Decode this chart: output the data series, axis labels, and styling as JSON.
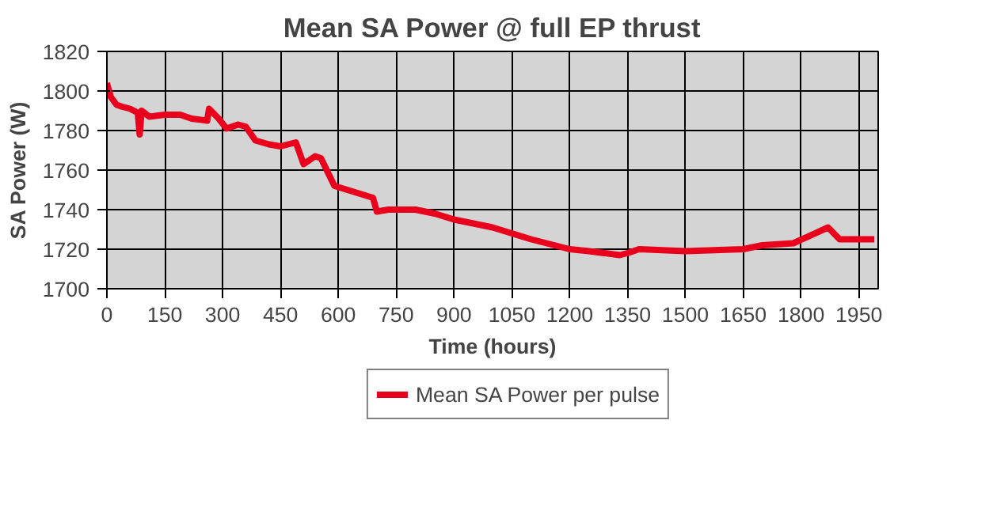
{
  "chart_data": {
    "type": "line",
    "title": "Mean SA Power @ full EP thrust",
    "xlabel": "Time (hours)",
    "ylabel": "SA Power (W)",
    "xlim": [
      0,
      2000
    ],
    "xticks": [
      0,
      150,
      300,
      450,
      600,
      750,
      900,
      1050,
      1200,
      1350,
      1500,
      1650,
      1800,
      1950
    ],
    "ylim": [
      1700,
      1820
    ],
    "yticks": [
      1700,
      1720,
      1740,
      1760,
      1780,
      1800,
      1820
    ],
    "grid": true,
    "legend": "bottom",
    "marker": "none",
    "line_style": "solid",
    "series": [
      {
        "name": "Mean SA Power per pulse",
        "color": "#e8001c",
        "x": [
          0,
          10,
          25,
          40,
          60,
          80,
          85,
          90,
          110,
          150,
          190,
          220,
          260,
          265,
          290,
          310,
          340,
          360,
          385,
          420,
          450,
          490,
          510,
          540,
          555,
          590,
          640,
          690,
          700,
          730,
          800,
          850,
          900,
          1000,
          1050,
          1100,
          1200,
          1250,
          1330,
          1350,
          1380,
          1500,
          1650,
          1700,
          1780,
          1870,
          1900,
          1950,
          1990
        ],
        "values": [
          1804,
          1797,
          1793,
          1792,
          1791,
          1789,
          1778,
          1790,
          1787,
          1788,
          1788,
          1786,
          1785,
          1791,
          1786,
          1781,
          1783,
          1782,
          1775,
          1773,
          1772,
          1774,
          1763,
          1767,
          1766,
          1752,
          1749,
          1746,
          1739,
          1740,
          1740,
          1738,
          1735,
          1731,
          1728,
          1725,
          1720,
          1719,
          1717,
          1718,
          1720,
          1719,
          1720,
          1722,
          1723,
          1731,
          1725,
          1725,
          1725
        ]
      }
    ]
  }
}
